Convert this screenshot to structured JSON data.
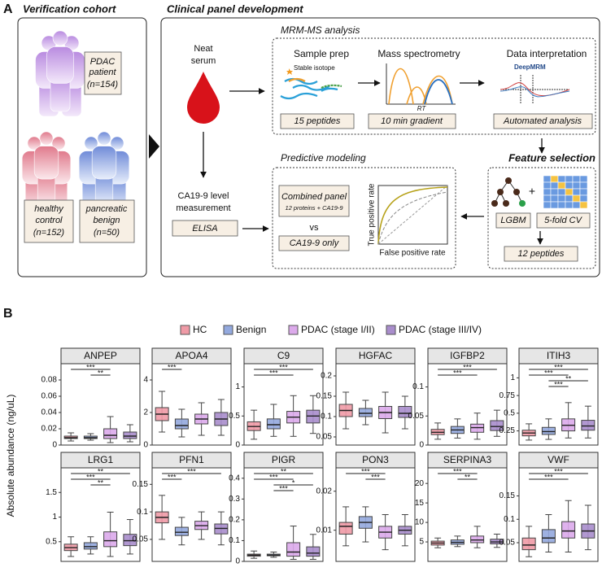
{
  "panel_a": {
    "label": "A",
    "left_title": "Verification cohort",
    "pdac": "PDAC",
    "pdac_2": "patient",
    "pdac_n": "(n=154)",
    "hc": "healthy",
    "hc_2": "control",
    "hc_n": "(n=152)",
    "benign": "pancreatic",
    "benign_2": "benign",
    "benign_n": "(n=50)",
    "right_title": "Clinical panel development",
    "serum": "Neat",
    "serum_2": "serum",
    "mrm_title": "MRM-MS analysis",
    "sample_prep": "Sample prep",
    "isotope": "Stable isotope",
    "mass_spec": "Mass spectrometry",
    "rt": "RT",
    "data_interp": "Data interpretation",
    "deepmrm": "DeepMRM",
    "peptides15": "15 peptides",
    "gradient": "10 min gradient",
    "automated": "Automated analysis",
    "ca_meas": "CA19-9 level",
    "ca_meas_2": "measurement",
    "elisa": "ELISA",
    "pred_title": "Predictive modeling",
    "combined": "Combined panel",
    "combined_2": "12 proteins + CA19-9",
    "vs": "vs",
    "ca_only": "CA19-9 only",
    "tpr": "True positive rate",
    "fpr": "False positive rate",
    "feat_title": "Feature selection",
    "lgbm": "LGBM",
    "cv": "5-fold CV",
    "peptides12": "12 peptides"
  },
  "panel_b": {
    "label": "B",
    "ylabel": "Absolute abundance (ng/uL)",
    "groups": [
      {
        "name": "HC",
        "color": "#ef9aa6"
      },
      {
        "name": "Benign",
        "color": "#93a9de"
      },
      {
        "name": "PDAC (stage I/II)",
        "color": "#dcaaeb"
      },
      {
        "name": "PDAC (stage III/IV)",
        "color": "#a98dcc"
      }
    ]
  },
  "chart_data": [
    {
      "type": "box",
      "title": "ANPEP",
      "ylim": [
        0,
        0.1
      ],
      "yticks": [
        0,
        0.02,
        0.04,
        0.06,
        0.08
      ],
      "boxes": [
        [
          0.005,
          0.008,
          0.009,
          0.011,
          0.015
        ],
        [
          0.006,
          0.008,
          0.009,
          0.011,
          0.014
        ],
        [
          0.003,
          0.008,
          0.012,
          0.02,
          0.035
        ],
        [
          0.004,
          0.008,
          0.011,
          0.016,
          0.025
        ]
      ],
      "significance": [
        {
          "groups": [
            0,
            2
          ],
          "label": "***"
        },
        {
          "groups": [
            1,
            2
          ],
          "label": "**"
        }
      ]
    },
    {
      "type": "box",
      "title": "APOA4",
      "ylim": [
        0,
        5
      ],
      "yticks": [
        0,
        2,
        4
      ],
      "boxes": [
        [
          0.8,
          1.5,
          1.9,
          2.3,
          3.3
        ],
        [
          0.5,
          1.0,
          1.2,
          1.6,
          2.2
        ],
        [
          0.6,
          1.3,
          1.6,
          1.9,
          2.6
        ],
        [
          0.6,
          1.2,
          1.6,
          2.0,
          2.8
        ]
      ],
      "significance": [
        {
          "groups": [
            0,
            1
          ],
          "label": "***"
        }
      ]
    },
    {
      "type": "box",
      "title": "C9",
      "ylim": [
        0,
        1.4
      ],
      "yticks": [
        0,
        0.5,
        1
      ],
      "boxes": [
        [
          0.1,
          0.25,
          0.32,
          0.4,
          0.6
        ],
        [
          0.15,
          0.28,
          0.35,
          0.45,
          0.7
        ],
        [
          0.15,
          0.38,
          0.48,
          0.58,
          0.85
        ],
        [
          0.2,
          0.38,
          0.5,
          0.6,
          0.85
        ]
      ],
      "significance": [
        {
          "groups": [
            0,
            3
          ],
          "label": "***"
        },
        {
          "groups": [
            0,
            2
          ],
          "label": "***"
        }
      ]
    },
    {
      "type": "box",
      "title": "HGFAC",
      "ylim": [
        0.03,
        0.23
      ],
      "yticks": [
        0.05,
        0.1,
        0.15,
        0.2
      ],
      "boxes": [
        [
          0.07,
          0.1,
          0.115,
          0.13,
          0.16
        ],
        [
          0.08,
          0.1,
          0.108,
          0.12,
          0.14
        ],
        [
          0.06,
          0.095,
          0.11,
          0.125,
          0.16
        ],
        [
          0.07,
          0.098,
          0.108,
          0.125,
          0.15
        ]
      ],
      "significance": []
    },
    {
      "type": "box",
      "title": "IGFBP2",
      "ylim": [
        0,
        0.14
      ],
      "yticks": [
        0,
        0.05,
        0.1
      ],
      "boxes": [
        [
          0.01,
          0.018,
          0.022,
          0.027,
          0.038
        ],
        [
          0.012,
          0.02,
          0.026,
          0.032,
          0.045
        ],
        [
          0.01,
          0.022,
          0.03,
          0.036,
          0.055
        ],
        [
          0.015,
          0.025,
          0.032,
          0.042,
          0.06
        ]
      ],
      "significance": [
        {
          "groups": [
            0,
            3
          ],
          "label": "***"
        },
        {
          "groups": [
            0,
            2
          ],
          "label": "***"
        }
      ]
    },
    {
      "type": "box",
      "title": "ITIH3",
      "ylim": [
        0.05,
        1.2
      ],
      "yticks": [
        0.25,
        0.5,
        0.75,
        1
      ],
      "boxes": [
        [
          0.12,
          0.18,
          0.22,
          0.26,
          0.35
        ],
        [
          0.13,
          0.2,
          0.24,
          0.3,
          0.42
        ],
        [
          0.15,
          0.25,
          0.33,
          0.42,
          0.65
        ],
        [
          0.15,
          0.26,
          0.32,
          0.4,
          0.6
        ]
      ],
      "significance": [
        {
          "groups": [
            0,
            3
          ],
          "label": "***"
        },
        {
          "groups": [
            0,
            2
          ],
          "label": "***"
        },
        {
          "groups": [
            1,
            3
          ],
          "label": "**"
        },
        {
          "groups": [
            1,
            2
          ],
          "label": "***"
        }
      ]
    },
    {
      "type": "box",
      "title": "LRG1",
      "ylim": [
        0.1,
        2
      ],
      "yticks": [
        0.5,
        1,
        1.5
      ],
      "boxes": [
        [
          0.2,
          0.32,
          0.38,
          0.45,
          0.6
        ],
        [
          0.25,
          0.35,
          0.4,
          0.48,
          0.6
        ],
        [
          0.2,
          0.4,
          0.52,
          0.7,
          1.1
        ],
        [
          0.25,
          0.42,
          0.52,
          0.65,
          0.95
        ]
      ],
      "significance": [
        {
          "groups": [
            0,
            3
          ],
          "label": "**"
        },
        {
          "groups": [
            0,
            2
          ],
          "label": "***"
        },
        {
          "groups": [
            1,
            2
          ],
          "label": "**"
        }
      ]
    },
    {
      "type": "box",
      "title": "PFN1",
      "ylim": [
        0.01,
        0.18
      ],
      "yticks": [
        0.05,
        0.1,
        0.15
      ],
      "boxes": [
        [
          0.05,
          0.08,
          0.09,
          0.1,
          0.13
        ],
        [
          0.04,
          0.057,
          0.063,
          0.072,
          0.09
        ],
        [
          0.05,
          0.068,
          0.075,
          0.083,
          0.1
        ],
        [
          0.04,
          0.06,
          0.07,
          0.078,
          0.1
        ]
      ],
      "significance": [
        {
          "groups": [
            0,
            3
          ],
          "label": "***"
        },
        {
          "groups": [
            0,
            1
          ],
          "label": "***"
        }
      ]
    },
    {
      "type": "box",
      "title": "PIGR",
      "ylim": [
        0,
        0.45
      ],
      "yticks": [
        0,
        0.1,
        0.2,
        0.3,
        0.4
      ],
      "boxes": [
        [
          0.015,
          0.025,
          0.03,
          0.035,
          0.05
        ],
        [
          0.02,
          0.027,
          0.03,
          0.035,
          0.045
        ],
        [
          0.01,
          0.025,
          0.045,
          0.09,
          0.17
        ],
        [
          0.01,
          0.025,
          0.04,
          0.07,
          0.13
        ]
      ],
      "significance": [
        {
          "groups": [
            0,
            3
          ],
          "label": "**"
        },
        {
          "groups": [
            0,
            2
          ],
          "label": "***"
        },
        {
          "groups": [
            1,
            3
          ],
          "label": "*"
        },
        {
          "groups": [
            1,
            2
          ],
          "label": "***"
        }
      ]
    },
    {
      "type": "box",
      "title": "PON3",
      "ylim": [
        0.002,
        0.026
      ],
      "yticks": [
        0.01,
        0.02
      ],
      "boxes": [
        [
          0.006,
          0.009,
          0.011,
          0.012,
          0.016
        ],
        [
          0.007,
          0.0105,
          0.012,
          0.0135,
          0.016
        ],
        [
          0.005,
          0.008,
          0.0095,
          0.011,
          0.014
        ],
        [
          0.006,
          0.009,
          0.01,
          0.011,
          0.014
        ]
      ],
      "significance": [
        {
          "groups": [
            0,
            2
          ],
          "label": "***"
        },
        {
          "groups": [
            1,
            2
          ],
          "label": "***"
        }
      ]
    },
    {
      "type": "box",
      "title": "SERPINA3",
      "ylim": [
        0,
        24
      ],
      "yticks": [
        5,
        10,
        15,
        20
      ],
      "boxes": [
        [
          3.5,
          4.2,
          4.7,
          5.2,
          6
        ],
        [
          3.8,
          4.4,
          4.9,
          5.5,
          6.5
        ],
        [
          3.5,
          4.8,
          5.5,
          6.5,
          9
        ],
        [
          3.6,
          4.5,
          5,
          5.7,
          7
        ]
      ],
      "significance": [
        {
          "groups": [
            0,
            2
          ],
          "label": "***"
        },
        {
          "groups": [
            1,
            2
          ],
          "label": "**"
        }
      ]
    },
    {
      "type": "box",
      "title": "VWF",
      "ylim": [
        0.01,
        0.21
      ],
      "yticks": [
        0.05,
        0.1,
        0.15
      ],
      "boxes": [
        [
          0.02,
          0.035,
          0.045,
          0.06,
          0.085
        ],
        [
          0.03,
          0.05,
          0.06,
          0.078,
          0.11
        ],
        [
          0.03,
          0.06,
          0.075,
          0.095,
          0.14
        ],
        [
          0.035,
          0.06,
          0.075,
          0.09,
          0.13
        ]
      ],
      "significance": [
        {
          "groups": [
            0,
            3
          ],
          "label": "***"
        },
        {
          "groups": [
            0,
            2
          ],
          "label": "***"
        }
      ]
    }
  ]
}
